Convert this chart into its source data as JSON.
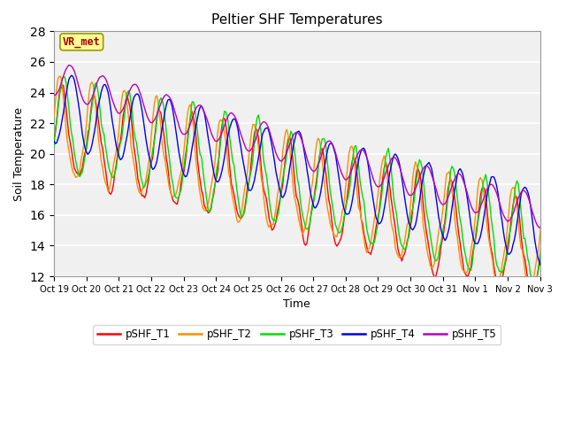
{
  "title": "Peltier SHF Temperatures",
  "xlabel": "Time",
  "ylabel": "Soil Temperature",
  "ylim": [
    12,
    28
  ],
  "yticks": [
    12,
    14,
    16,
    18,
    20,
    22,
    24,
    26,
    28
  ],
  "xtick_labels": [
    "Oct 19",
    "Oct 20",
    "Oct 21",
    "Oct 22",
    "Oct 23",
    "Oct 24",
    "Oct 25",
    "Oct 26",
    "Oct 27",
    "Oct 28",
    "Oct 29",
    "Oct 30",
    "Oct 31",
    "Nov 1",
    "Nov 2",
    "Nov 3"
  ],
  "colors": {
    "T1": "#ff0000",
    "T2": "#ff8c00",
    "T3": "#00dd00",
    "T4": "#0000ee",
    "T5": "#bb00bb"
  },
  "bg_color": "#e8e8e8",
  "plot_bg": "#f0f0f0",
  "annotation_text": "VR_met",
  "annotation_color": "#aa0000",
  "annotation_bg": "#ffff99",
  "legend_labels": [
    "pSHF_T1",
    "pSHF_T2",
    "pSHF_T3",
    "pSHF_T4",
    "pSHF_T5"
  ]
}
